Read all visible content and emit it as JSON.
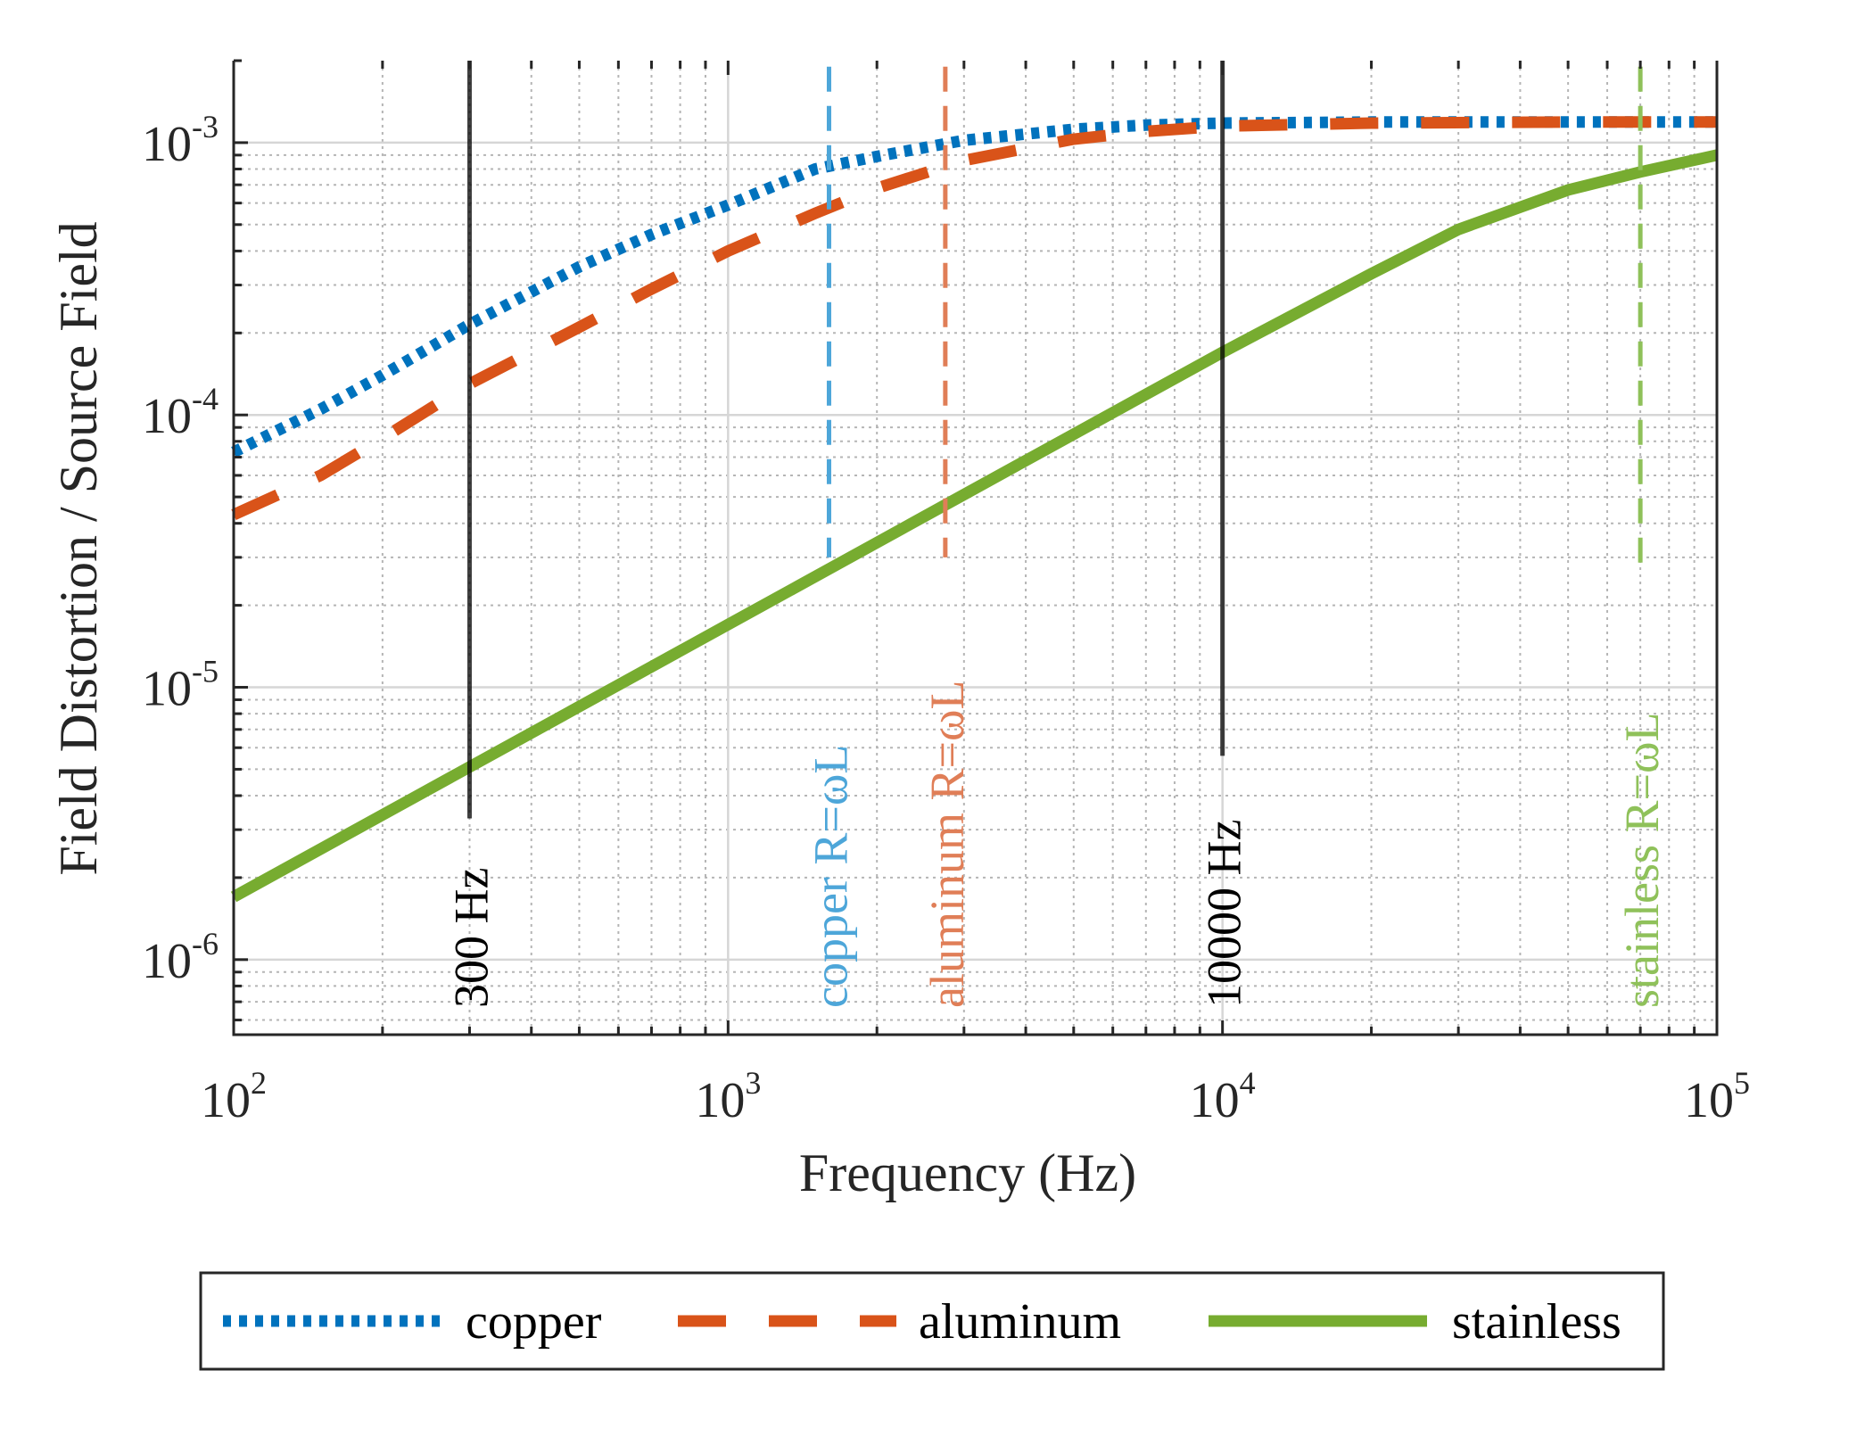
{
  "chart_data": {
    "type": "line",
    "xlabel": "Frequency (Hz)",
    "ylabel": "Field Distortion / Source Field",
    "x_scale": "log",
    "y_scale": "log",
    "xlim": [
      100,
      100000
    ],
    "ylim": [
      5.3e-07,
      0.002
    ],
    "grid": true,
    "minor_grid": true,
    "legend_position": "bottom",
    "x_ticks": [
      {
        "value": 100,
        "base": "10",
        "exp": "2"
      },
      {
        "value": 1000,
        "base": "10",
        "exp": "3"
      },
      {
        "value": 10000,
        "base": "10",
        "exp": "4"
      },
      {
        "value": 100000,
        "base": "10",
        "exp": "5"
      }
    ],
    "y_ticks": [
      {
        "value": 1e-06,
        "base": "10",
        "exp": "-6"
      },
      {
        "value": 1e-05,
        "base": "10",
        "exp": "-5"
      },
      {
        "value": 0.0001,
        "base": "10",
        "exp": "-4"
      },
      {
        "value": 0.001,
        "base": "10",
        "exp": "-3"
      }
    ],
    "series": [
      {
        "name": "copper",
        "color": "#0072BD",
        "style": "dotted",
        "x": [
          100,
          150,
          200,
          300,
          500,
          700,
          1000,
          1500,
          2000,
          3000,
          5000,
          7000,
          10000,
          20000,
          50000,
          100000
        ],
        "y": [
          7.3e-05,
          0.000105,
          0.00014,
          0.000215,
          0.00035,
          0.00046,
          0.00059,
          0.0008,
          0.00089,
          0.00102,
          0.00112,
          0.00116,
          0.00118,
          0.00119,
          0.00119,
          0.00119
        ]
      },
      {
        "name": "aluminum",
        "color": "#D95319",
        "style": "dashed",
        "x": [
          100,
          150,
          200,
          300,
          500,
          700,
          1000,
          1500,
          2000,
          3000,
          5000,
          7000,
          10000,
          20000,
          50000,
          100000
        ],
        "y": [
          4.3e-05,
          6e-05,
          8.2e-05,
          0.00013,
          0.00021,
          0.00029,
          0.0004,
          0.00055,
          0.00068,
          0.00086,
          0.00103,
          0.0011,
          0.00115,
          0.00118,
          0.00119,
          0.00119
        ]
      },
      {
        "name": "stainless",
        "color": "#77AC30",
        "style": "solid",
        "x": [
          100,
          200,
          300,
          500,
          1000,
          2000,
          3000,
          5000,
          10000,
          20000,
          30000,
          50000,
          70000,
          100000
        ],
        "y": [
          1.7e-06,
          3.4e-06,
          5.1e-06,
          8.5e-06,
          1.7e-05,
          3.4e-05,
          5.1e-05,
          8.5e-05,
          0.00017,
          0.00033,
          0.00048,
          0.00067,
          0.00078,
          0.0009
        ]
      }
    ],
    "annotations": [
      {
        "x": 300,
        "label": "300 Hz",
        "color": "#000000",
        "style": "solid",
        "y_from": 3.3e-06,
        "y_to": 0.002
      },
      {
        "x": 1600,
        "label": "copper R=ωL",
        "color": "#4DA6D9",
        "style": "dashed",
        "y_from": 3e-05,
        "y_to": 0.0019
      },
      {
        "x": 2750,
        "label": "aluminum R=ωL",
        "color": "#E07E57",
        "style": "dashed",
        "y_from": 3e-05,
        "y_to": 0.0019
      },
      {
        "x": 10000,
        "label": "10000 Hz",
        "color": "#000000",
        "style": "solid",
        "y_from": 5.6e-06,
        "y_to": 0.002
      },
      {
        "x": 70000,
        "label": "stainless R=ωL",
        "color": "#8FC15A",
        "style": "dashed",
        "y_from": 2.6e-05,
        "y_to": 0.0019
      }
    ]
  }
}
